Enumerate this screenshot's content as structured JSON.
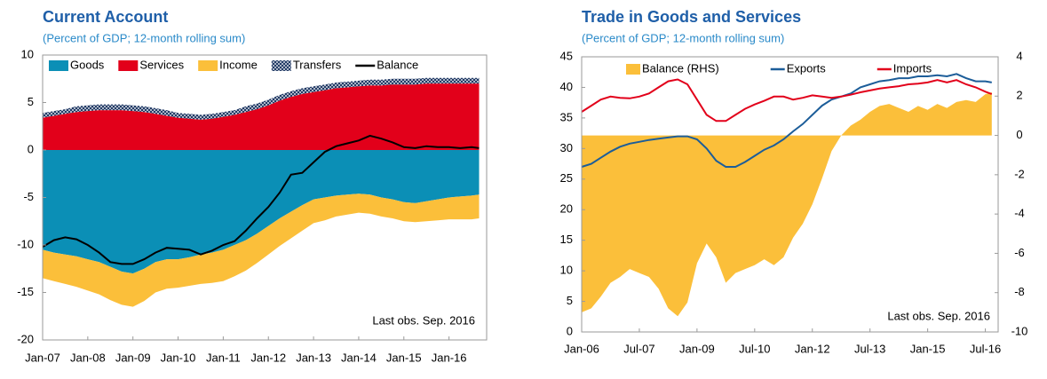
{
  "chart_data": [
    {
      "type": "stacked-area",
      "title": "Current Account",
      "subtitle": "(Percent of GDP; 12-month rolling sum)",
      "annotation": "Last obs. Sep. 2016",
      "x": [
        "Jan-07",
        "Apr-07",
        "Jul-07",
        "Oct-07",
        "Jan-08",
        "Apr-08",
        "Jul-08",
        "Oct-08",
        "Jan-09",
        "Apr-09",
        "Jul-09",
        "Oct-09",
        "Jan-10",
        "Apr-10",
        "Jul-10",
        "Oct-10",
        "Jan-11",
        "Apr-11",
        "Jul-11",
        "Oct-11",
        "Jan-12",
        "Apr-12",
        "Jul-12",
        "Oct-12",
        "Jan-13",
        "Apr-13",
        "Jul-13",
        "Oct-13",
        "Jan-14",
        "Apr-14",
        "Jul-14",
        "Oct-14",
        "Jan-15",
        "Apr-15",
        "Jul-15",
        "Oct-15",
        "Jan-16",
        "Apr-16",
        "Jul-16",
        "Sep-16"
      ],
      "xlim": [
        "Jan-07",
        "Nov-16"
      ],
      "xticks": [
        "Jan-07",
        "Jan-08",
        "Jan-09",
        "Jan-10",
        "Jan-11",
        "Jan-12",
        "Jan-13",
        "Jan-14",
        "Jan-15",
        "Jan-16"
      ],
      "ylim": [
        -20,
        10
      ],
      "yticks": [
        -20,
        -15,
        -10,
        -5,
        0,
        5,
        10
      ],
      "grid": false,
      "legend": "top",
      "series": [
        {
          "name": "Goods",
          "color": "#0b8fb6",
          "type": "area",
          "values": [
            -10.5,
            -10.8,
            -11,
            -11.2,
            -11.5,
            -11.8,
            -12.3,
            -12.8,
            -13,
            -12.5,
            -11.8,
            -11.5,
            -11.5,
            -11.3,
            -11,
            -10.8,
            -10.5,
            -10,
            -9.5,
            -8.8,
            -8,
            -7.2,
            -6.5,
            -5.8,
            -5.2,
            -5,
            -4.8,
            -4.7,
            -4.6,
            -4.7,
            -5,
            -5.2,
            -5.5,
            -5.6,
            -5.4,
            -5.2,
            -5,
            -4.9,
            -4.8,
            -4.7
          ]
        },
        {
          "name": "Services",
          "color": "#e2001a",
          "type": "area",
          "values": [
            3.4,
            3.6,
            3.8,
            4,
            4.1,
            4.2,
            4.2,
            4.2,
            4.1,
            4,
            3.8,
            3.6,
            3.4,
            3.3,
            3.2,
            3.3,
            3.5,
            3.7,
            4,
            4.3,
            4.7,
            5.2,
            5.6,
            5.9,
            6.1,
            6.3,
            6.5,
            6.6,
            6.7,
            6.8,
            6.8,
            6.9,
            6.9,
            6.9,
            7,
            7,
            7,
            7,
            7,
            7
          ]
        },
        {
          "name": "Income",
          "color": "#fbbf3a",
          "type": "area",
          "values": [
            -3,
            -3,
            -3.1,
            -3.2,
            -3.3,
            -3.4,
            -3.5,
            -3.5,
            -3.5,
            -3.4,
            -3.2,
            -3.1,
            -3,
            -3,
            -3.1,
            -3.2,
            -3.3,
            -3.3,
            -3.2,
            -3.1,
            -3,
            -2.9,
            -2.8,
            -2.7,
            -2.5,
            -2.4,
            -2.2,
            -2.1,
            -2,
            -2,
            -2,
            -2,
            -2,
            -2,
            -2.1,
            -2.2,
            -2.3,
            -2.4,
            -2.5,
            -2.5
          ]
        },
        {
          "name": "Transfers",
          "color": "#1f3864",
          "type": "area",
          "hatch": true,
          "values": [
            0.5,
            0.5,
            0.5,
            0.6,
            0.6,
            0.6,
            0.6,
            0.6,
            0.6,
            0.6,
            0.6,
            0.6,
            0.5,
            0.5,
            0.5,
            0.5,
            0.5,
            0.5,
            0.6,
            0.6,
            0.6,
            0.6,
            0.6,
            0.6,
            0.6,
            0.6,
            0.6,
            0.6,
            0.6,
            0.6,
            0.6,
            0.6,
            0.6,
            0.6,
            0.6,
            0.6,
            0.6,
            0.6,
            0.6,
            0.6
          ]
        },
        {
          "name": "Balance",
          "color": "#000000",
          "type": "line",
          "values": [
            -10.2,
            -9.5,
            -9.2,
            -9.4,
            -10,
            -10.8,
            -11.8,
            -12,
            -12,
            -11.5,
            -10.8,
            -10.3,
            -10.4,
            -10.5,
            -11,
            -10.6,
            -10,
            -9.6,
            -8.5,
            -7.2,
            -6,
            -4.5,
            -2.6,
            -2.4,
            -1.3,
            -0.2,
            0.4,
            0.7,
            1,
            1.5,
            1.2,
            0.8,
            0.3,
            0.2,
            0.4,
            0.3,
            0.3,
            0.2,
            0.3,
            0.2
          ]
        }
      ]
    },
    {
      "type": "line",
      "title": "Trade in Goods and Services",
      "subtitle": "(Percent of GDP; 12-month rolling sum)",
      "annotation": "Last obs. Sep. 2016",
      "x": [
        "Jan-06",
        "Apr-06",
        "Jul-06",
        "Oct-06",
        "Jan-07",
        "Apr-07",
        "Jul-07",
        "Oct-07",
        "Jan-08",
        "Apr-08",
        "Jul-08",
        "Oct-08",
        "Jan-09",
        "Apr-09",
        "Jul-09",
        "Oct-09",
        "Jan-10",
        "Apr-10",
        "Jul-10",
        "Oct-10",
        "Jan-11",
        "Apr-11",
        "Jul-11",
        "Oct-11",
        "Jan-12",
        "Apr-12",
        "Jul-12",
        "Oct-12",
        "Jan-13",
        "Apr-13",
        "Jul-13",
        "Oct-13",
        "Jan-14",
        "Apr-14",
        "Jul-14",
        "Oct-14",
        "Jan-15",
        "Apr-15",
        "Jul-15",
        "Oct-15",
        "Jan-16",
        "Apr-16",
        "Jul-16",
        "Sep-16"
      ],
      "xlim": [
        "Jan-06",
        "Nov-16"
      ],
      "xticks": [
        "Jan-06",
        "Jul-07",
        "Jan-09",
        "Jul-10",
        "Jan-12",
        "Jul-13",
        "Jan-15",
        "Jul-16"
      ],
      "ylim": [
        0,
        45
      ],
      "yticks": [
        0,
        5,
        10,
        15,
        20,
        25,
        30,
        35,
        40,
        45
      ],
      "y2lim": [
        -10,
        4
      ],
      "y2ticks": [
        -10,
        -8,
        -6,
        -4,
        -2,
        0,
        2,
        4
      ],
      "grid": false,
      "legend": "top",
      "series": [
        {
          "name": "Balance (RHS)",
          "color": "#fbbf3a",
          "type": "area",
          "axis": "y2",
          "values": [
            -9,
            -8.8,
            -8.2,
            -7.5,
            -7.2,
            -6.8,
            -7,
            -7.2,
            -7.8,
            -8.8,
            -9.2,
            -8.5,
            -6.5,
            -5.5,
            -6.2,
            -7.5,
            -7,
            -6.8,
            -6.6,
            -6.3,
            -6.6,
            -6.2,
            -5.2,
            -4.5,
            -3.5,
            -2.2,
            -0.8,
            0,
            0.5,
            0.8,
            1.2,
            1.5,
            1.6,
            1.4,
            1.2,
            1.5,
            1.3,
            1.6,
            1.4,
            1.7,
            1.8,
            1.7,
            2.1,
            2.2
          ]
        },
        {
          "name": "Exports",
          "color": "#1c5d99",
          "type": "line",
          "values": [
            27,
            27.5,
            28.5,
            29.5,
            30.3,
            30.8,
            31.1,
            31.4,
            31.6,
            31.8,
            32,
            32,
            31.5,
            30,
            28,
            27,
            27,
            27.8,
            28.8,
            29.8,
            30.5,
            31.5,
            32.8,
            34,
            35.5,
            37,
            38,
            38.5,
            39,
            40,
            40.5,
            41,
            41.2,
            41.5,
            41.5,
            41.8,
            41.8,
            42,
            41.8,
            42.2,
            41.5,
            41,
            41,
            40.8
          ]
        },
        {
          "name": "Imports",
          "color": "#e2001a",
          "type": "line",
          "values": [
            36,
            37,
            38,
            38.5,
            38.3,
            38.2,
            38.5,
            39,
            40,
            41,
            41.3,
            40.5,
            38,
            35.5,
            34.5,
            34.5,
            35.5,
            36.5,
            37.2,
            37.8,
            38.5,
            38.5,
            38,
            38.3,
            38.7,
            38.5,
            38.3,
            38.5,
            38.8,
            39.2,
            39.5,
            39.8,
            40,
            40.2,
            40.5,
            40.6,
            40.8,
            41.2,
            40.8,
            41.2,
            40.5,
            40,
            39.3,
            38.9
          ]
        }
      ]
    }
  ]
}
